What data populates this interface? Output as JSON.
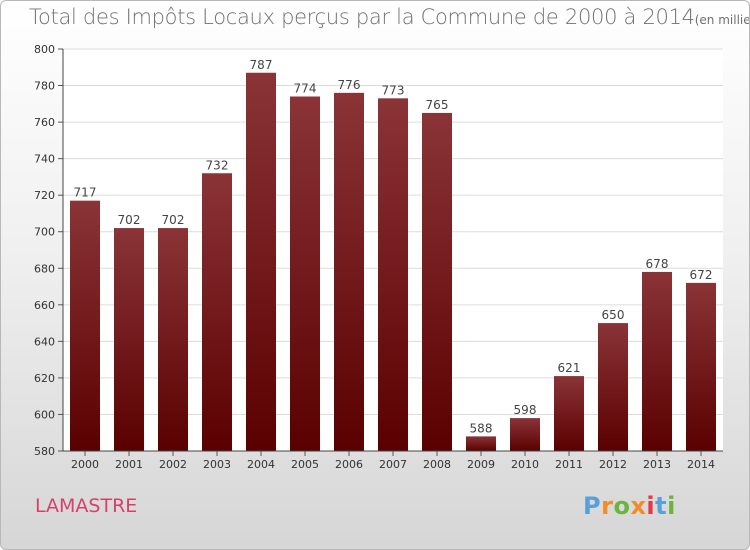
{
  "header": {
    "title": "Total des Impôts Locaux perçus par la Commune de 2000 à 2014",
    "unit_note": "(en milliers d'€)"
  },
  "footer": {
    "commune": "LAMASTRE",
    "brand": "Proxiti"
  },
  "colors": {
    "bar_top": "#8a3438",
    "bar_bottom": "#5a0000",
    "commune_text": "#d4416a",
    "brand_letters": [
      "#5aa0d8",
      "#f28c28",
      "#6cb33f",
      "#f28c28",
      "#e63946",
      "#5aa0d8",
      "#6cb33f"
    ]
  },
  "chart_data": {
    "type": "bar",
    "categories": [
      "2000",
      "2001",
      "2002",
      "2003",
      "2004",
      "2005",
      "2006",
      "2007",
      "2008",
      "2009",
      "2010",
      "2011",
      "2012",
      "2013",
      "2014"
    ],
    "values": [
      717,
      702,
      702,
      732,
      787,
      774,
      776,
      773,
      765,
      588,
      598,
      621,
      650,
      678,
      672
    ],
    "ylim": [
      580,
      800
    ],
    "yticks": [
      580,
      600,
      620,
      640,
      660,
      680,
      700,
      720,
      740,
      760,
      780,
      800
    ],
    "grid": true,
    "legend": "none"
  }
}
